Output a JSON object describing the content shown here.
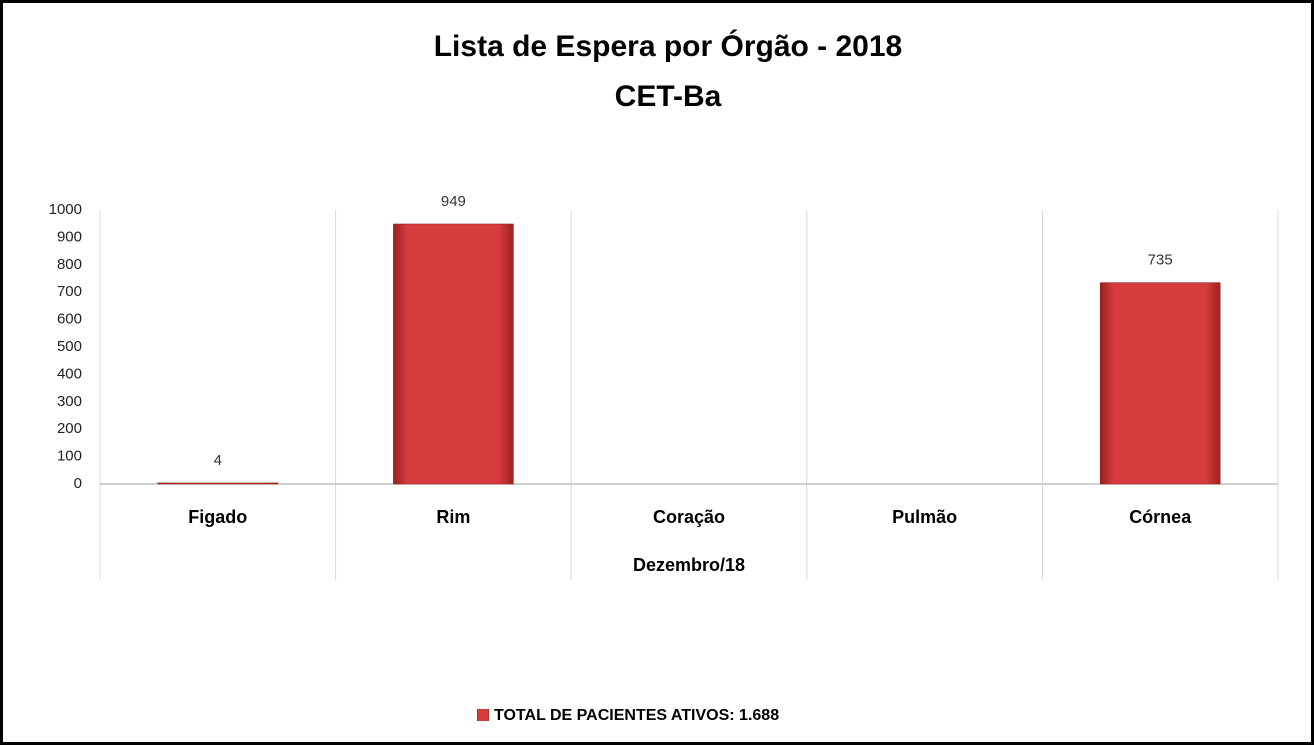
{
  "chart_data": {
    "type": "bar",
    "title": "Lista de Espera por Órgão - 2018",
    "subtitle": "CET-Ba",
    "x_label": "Dezembro/18",
    "categories": [
      "Figado",
      "Rim",
      "Coração",
      "Pulmão",
      "Córnea"
    ],
    "series": [
      {
        "name": "TOTAL DE PACIENTES ATIVOS: 1.688",
        "color": "#d63c3c",
        "values": [
          4,
          949,
          null,
          null,
          735
        ]
      }
    ],
    "ylim": [
      0,
      1000
    ],
    "yticks": [
      0,
      100,
      200,
      300,
      400,
      500,
      600,
      700,
      800,
      900,
      1000
    ],
    "legend": "bottom"
  }
}
